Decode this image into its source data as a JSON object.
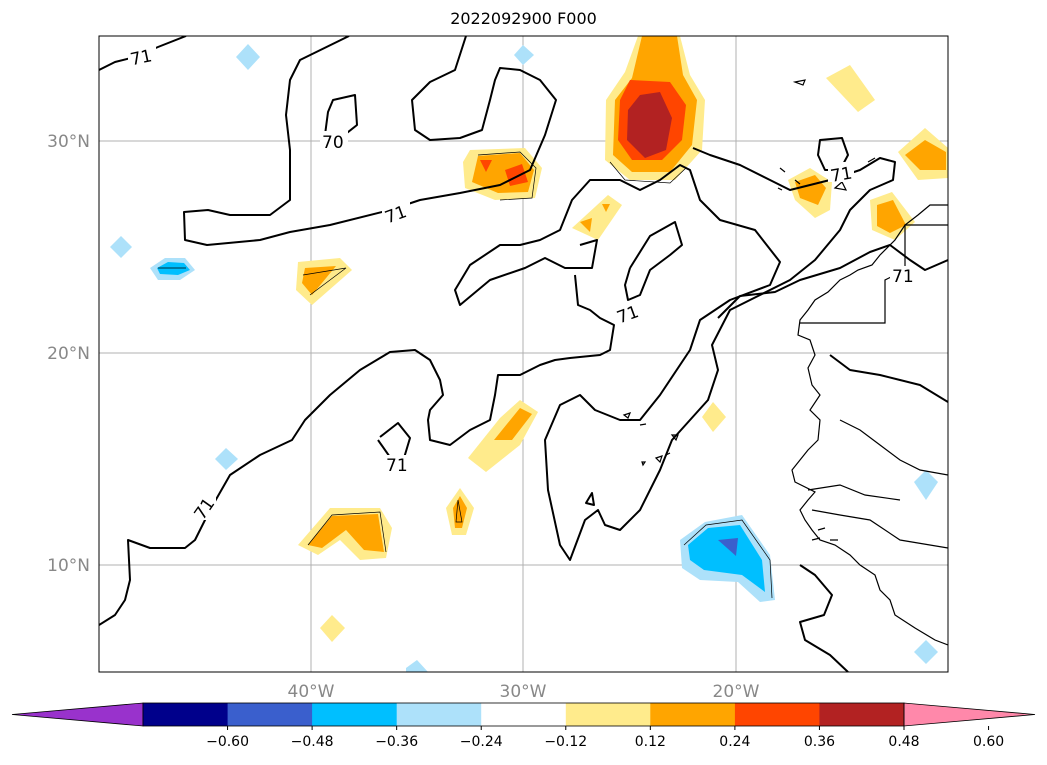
{
  "title": "2022092900 F000",
  "map": {
    "lat_labels": [
      "30°N",
      "20°N",
      "10°N"
    ],
    "lon_labels": [
      "40°W",
      "30°W",
      "20°W"
    ],
    "contour_labels": [
      "71",
      "70",
      "71",
      "71",
      "71",
      "71",
      "71",
      "71"
    ]
  },
  "colorbar": {
    "colors": [
      "#9932CC",
      "#00008B",
      "#3A5FCD",
      "#00BFFF",
      "#ADE1FA",
      "#FFFFFF",
      "#FFEB8C",
      "#FFA500",
      "#FF4500",
      "#B22222",
      "#FF88AA"
    ],
    "tick_labels": [
      "−0.60",
      "−0.48",
      "−0.36",
      "−0.24",
      "−0.12",
      "0.12",
      "0.24",
      "0.36",
      "0.48",
      "0.60"
    ]
  },
  "colors": {
    "grid": "#b0b0b0",
    "contour": "#000000",
    "coastline": "#000000"
  }
}
